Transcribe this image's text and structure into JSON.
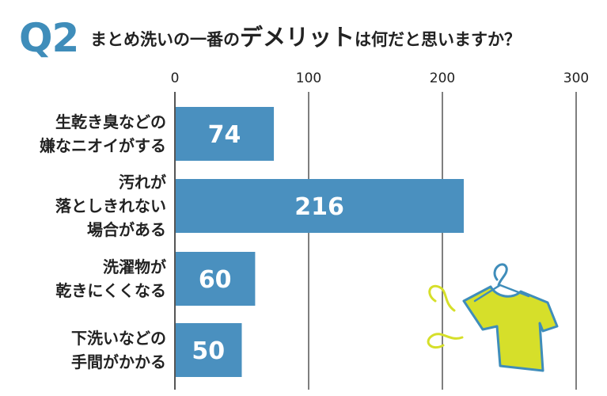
{
  "question": {
    "number": "Q2",
    "title_before": "まとめ洗いの一番の",
    "title_emphasis": "デメリット",
    "title_after": "は何だと思いますか？"
  },
  "colors": {
    "accent": "#3f8dba",
    "bar": "#4a90bf",
    "grid": "#555555",
    "shirt": "#d6df2a",
    "hanger": "#3f8dba"
  },
  "illustration": {
    "shirt_icon": "tshirt-on-hanger-icon"
  },
  "chart_data": {
    "type": "bar",
    "orientation": "horizontal",
    "categories": [
      [
        "生乾き臭などの",
        "嫌なニオイがする"
      ],
      [
        "汚れが",
        "落としきれない",
        "場合がある"
      ],
      [
        "洗濯物が",
        "乾きにくくなる"
      ],
      [
        "下洗いなどの",
        "手間がかかる"
      ]
    ],
    "values": [
      74,
      216,
      60,
      50
    ],
    "value_labels": [
      "74",
      "216",
      "60",
      "50"
    ],
    "xticks": [
      0,
      100,
      200,
      300
    ],
    "xtick_labels": [
      "0",
      "100",
      "200",
      "300"
    ],
    "xlim": [
      0,
      300
    ],
    "grid": true,
    "title": "",
    "xlabel": "",
    "ylabel": ""
  }
}
